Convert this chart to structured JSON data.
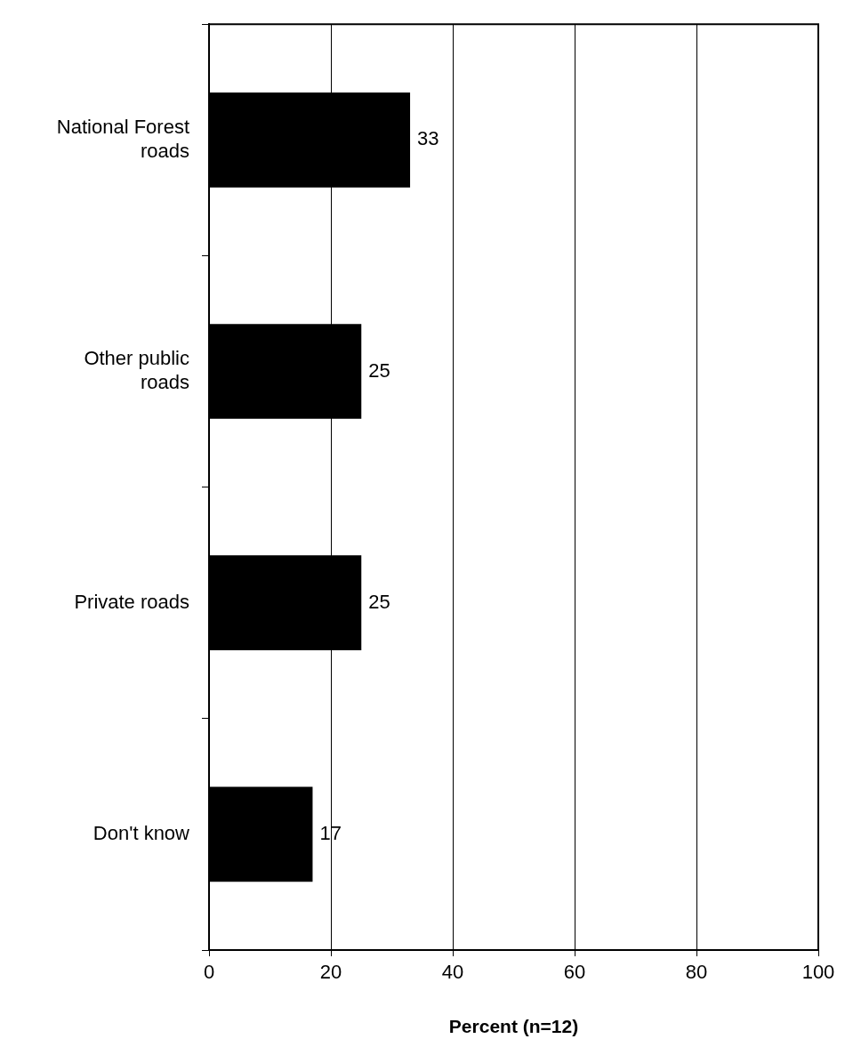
{
  "chart_data": {
    "type": "bar",
    "orientation": "horizontal",
    "xlabel": "Percent (n=12)",
    "categories": [
      "National Forest roads",
      "Other public roads",
      "Private roads",
      "Don't know"
    ],
    "values": [
      33,
      25,
      25,
      17
    ],
    "color": "#000000",
    "xlim": [
      0,
      100
    ],
    "xticks": [
      0,
      20,
      40,
      60,
      80,
      100
    ],
    "grid": "x",
    "data_labels": true,
    "legend": false
  }
}
